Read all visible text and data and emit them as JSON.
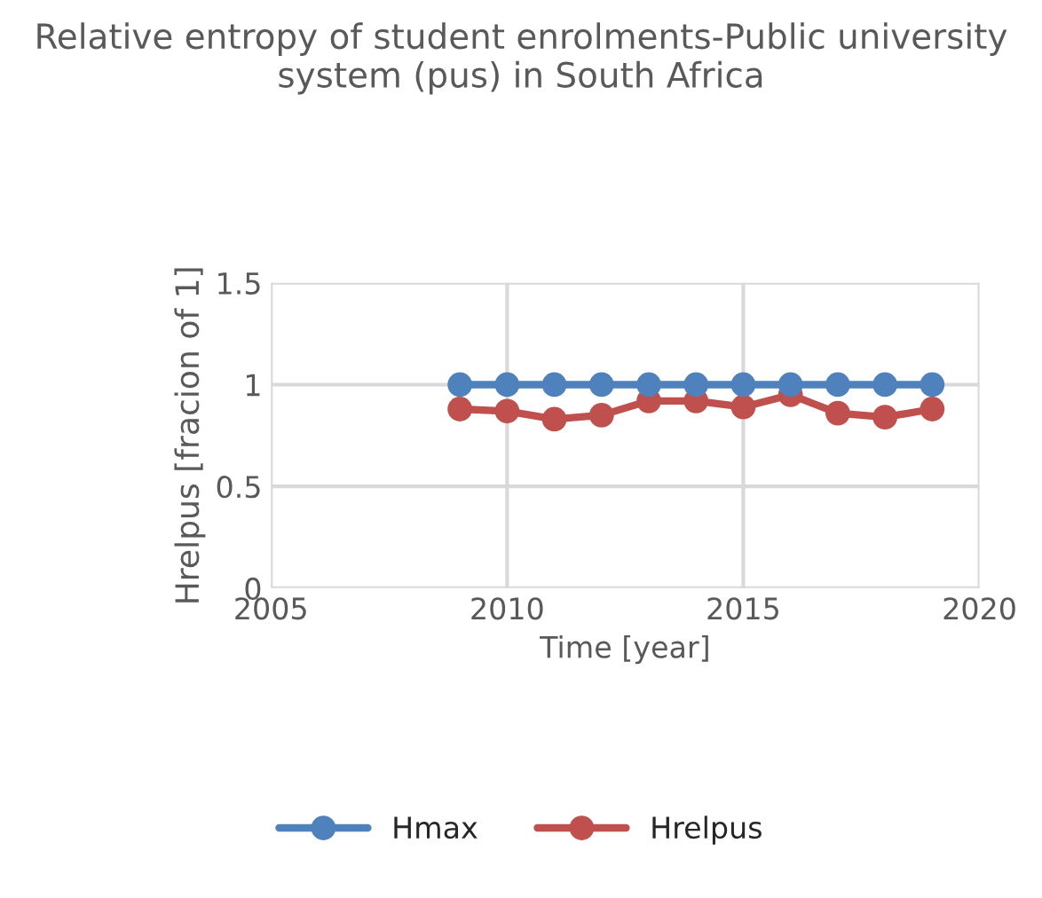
{
  "chart_data": {
    "type": "line",
    "title": "Relative entropy of student enrolments-Public university system (pus) in South Africa",
    "xlabel": "Time [year]",
    "ylabel": "Hrelpus [fracion of 1]",
    "x": [
      2009,
      2010,
      2011,
      2012,
      2013,
      2014,
      2015,
      2016,
      2017,
      2018,
      2019
    ],
    "series": [
      {
        "name": "Hmax",
        "color": "#4f81bd",
        "values": [
          1,
          1,
          1,
          1,
          1,
          1,
          1,
          1,
          1,
          1,
          1
        ]
      },
      {
        "name": "Hrelpus",
        "color": "#c0504d",
        "values": [
          0.88,
          0.87,
          0.83,
          0.85,
          0.92,
          0.92,
          0.89,
          0.95,
          0.86,
          0.84,
          0.88
        ]
      }
    ],
    "xlim": [
      2005,
      2020
    ],
    "xticks": [
      2005,
      2010,
      2015,
      2020
    ],
    "ylim": [
      0,
      1.5
    ],
    "yticks": [
      0,
      0.5,
      1,
      1.5
    ],
    "grid": true,
    "legend": "bottom",
    "marker": "circle",
    "line_style": "solid"
  }
}
